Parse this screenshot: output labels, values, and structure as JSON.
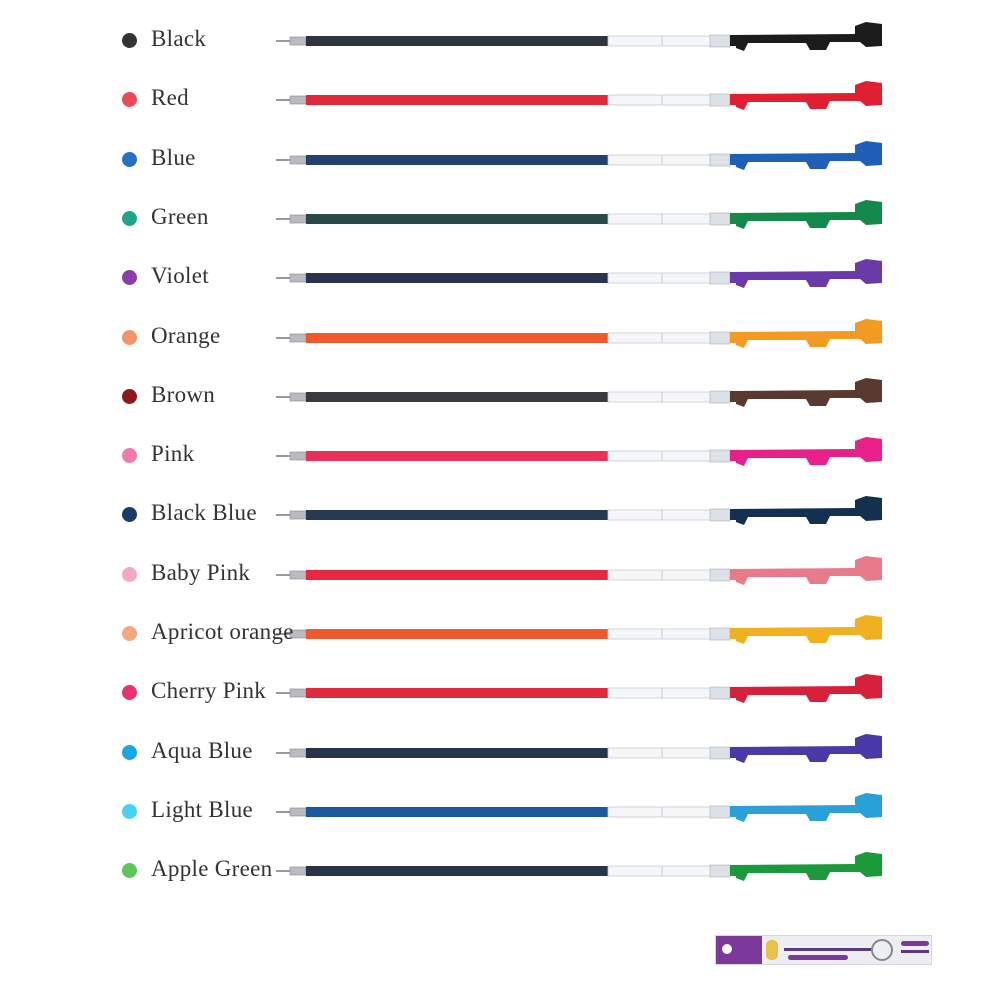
{
  "refills": [
    {
      "label": "Black",
      "dot_color": "#333333",
      "ink_color": "#2e3440",
      "cap_color": "#1c1c1c"
    },
    {
      "label": "Red",
      "dot_color": "#e84a5a",
      "ink_color": "#e02a3a",
      "cap_color": "#e0202e"
    },
    {
      "label": "Blue",
      "dot_color": "#2a6fc0",
      "ink_color": "#24406e",
      "cap_color": "#1f5fb8"
    },
    {
      "label": "Green",
      "dot_color": "#1fa58a",
      "ink_color": "#2a4a4a",
      "cap_color": "#138a4a"
    },
    {
      "label": "Violet",
      "dot_color": "#8a3fa8",
      "ink_color": "#2a3350",
      "cap_color": "#6a3aa8"
    },
    {
      "label": "Orange",
      "dot_color": "#f2946a",
      "ink_color": "#ee5a2e",
      "cap_color": "#f29a22"
    },
    {
      "label": "Brown",
      "dot_color": "#8b1a1a",
      "ink_color": "#3a3a40",
      "cap_color": "#5a3a2e"
    },
    {
      "label": "Pink",
      "dot_color": "#f07aa8",
      "ink_color": "#e8305a",
      "cap_color": "#e8208a"
    },
    {
      "label": "Black Blue",
      "dot_color": "#1a3a6a",
      "ink_color": "#263a50",
      "cap_color": "#15304e"
    },
    {
      "label": "Baby Pink",
      "dot_color": "#f6a6c6",
      "ink_color": "#e8283e",
      "cap_color": "#e87a8a"
    },
    {
      "label": "Apricot orange",
      "dot_color": "#f5a880",
      "ink_color": "#ee5a2e",
      "cap_color": "#f0b020"
    },
    {
      "label": "Cherry Pink",
      "dot_color": "#e8336e",
      "ink_color": "#e0283e",
      "cap_color": "#d8203a"
    },
    {
      "label": "Aqua Blue",
      "dot_color": "#1aa6e0",
      "ink_color": "#263450",
      "cap_color": "#4a3aa8"
    },
    {
      "label": "Light Blue",
      "dot_color": "#4ad0f0",
      "ink_color": "#1a5a9a",
      "cap_color": "#2aa0d8"
    },
    {
      "label": "Apple Green",
      "dot_color": "#5cc85c",
      "ink_color": "#283448",
      "cap_color": "#1a9a3a"
    }
  ],
  "package": {
    "accent_color": "#7b3a9a"
  }
}
